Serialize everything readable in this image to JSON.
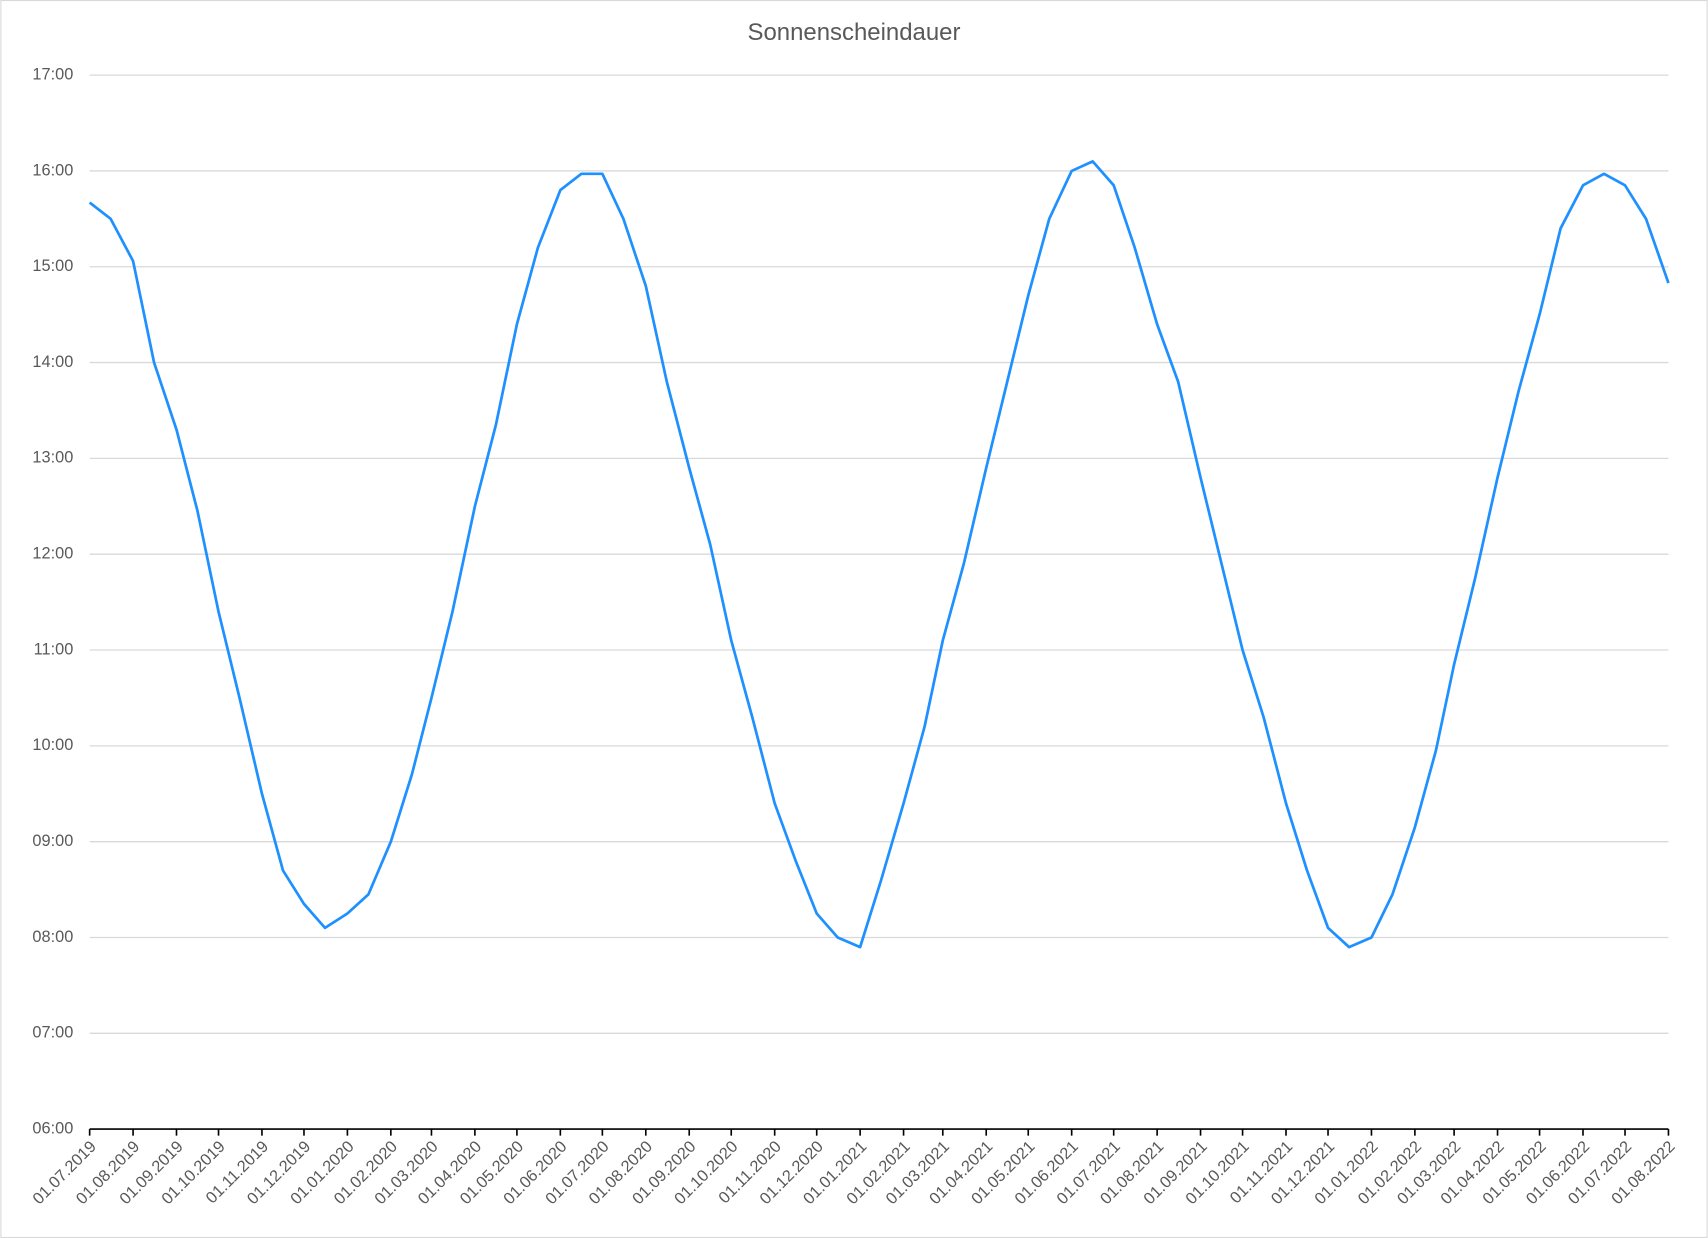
{
  "chart_data": {
    "type": "line",
    "title": "Sonnenscheindauer",
    "x": [
      "01.07.2019",
      "16.07.2019",
      "01.08.2019",
      "16.08.2019",
      "01.09.2019",
      "16.09.2019",
      "01.10.2019",
      "16.10.2019",
      "01.11.2019",
      "16.11.2019",
      "01.12.2019",
      "16.12.2019",
      "01.01.2020",
      "16.01.2020",
      "01.02.2020",
      "16.02.2020",
      "01.03.2020",
      "16.03.2020",
      "01.04.2020",
      "16.04.2020",
      "01.05.2020",
      "16.05.2020",
      "01.06.2020",
      "16.06.2020",
      "01.07.2020",
      "16.07.2020",
      "01.08.2020",
      "16.08.2020",
      "01.09.2020",
      "16.09.2020",
      "01.10.2020",
      "16.10.2020",
      "01.11.2020",
      "16.11.2020",
      "01.12.2020",
      "16.12.2020",
      "01.01.2021",
      "16.01.2021",
      "01.02.2021",
      "16.02.2021",
      "01.03.2021",
      "16.03.2021",
      "01.04.2021",
      "16.04.2021",
      "01.05.2021",
      "16.05.2021",
      "01.06.2021",
      "16.06.2021",
      "01.07.2021",
      "16.07.2021",
      "01.08.2021",
      "16.08.2021",
      "01.09.2021",
      "16.09.2021",
      "01.10.2021",
      "16.10.2021",
      "01.11.2021",
      "16.11.2021",
      "01.12.2021",
      "16.12.2021",
      "01.01.2022",
      "16.01.2022",
      "01.02.2022",
      "16.02.2022",
      "01.03.2022",
      "16.03.2022",
      "01.04.2022",
      "16.04.2022",
      "01.05.2022",
      "16.05.2022",
      "01.06.2022",
      "16.06.2022",
      "01.07.2022",
      "16.07.2022",
      "01.08.2022"
    ],
    "series": [
      {
        "name": "Sonnenscheindauer",
        "color": "#1e90ff",
        "values": [
          15.67,
          15.5,
          15.06,
          14.0,
          13.3,
          12.45,
          11.4,
          10.5,
          9.5,
          8.7,
          8.35,
          8.1,
          8.25,
          8.45,
          9.0,
          9.7,
          10.5,
          11.4,
          12.5,
          13.35,
          14.4,
          15.2,
          15.8,
          15.97,
          15.97,
          15.5,
          14.8,
          13.8,
          12.9,
          12.1,
          11.1,
          10.3,
          9.4,
          8.8,
          8.25,
          8.0,
          7.9,
          8.6,
          9.4,
          10.2,
          11.1,
          11.9,
          12.9,
          13.8,
          14.7,
          15.5,
          16.0,
          16.1,
          15.85,
          15.2,
          14.4,
          13.8,
          12.8,
          11.9,
          11.0,
          10.3,
          9.4,
          8.7,
          8.1,
          7.9,
          8.0,
          8.45,
          9.15,
          9.95,
          10.85,
          11.75,
          12.8,
          13.7,
          14.5,
          15.4,
          15.85,
          15.97,
          15.85,
          15.5,
          14.83
        ]
      }
    ],
    "xlim": [
      "01.07.2019",
      "01.08.2022"
    ],
    "xticks": [
      "01.07.2019",
      "01.08.2019",
      "01.09.2019",
      "01.10.2019",
      "01.11.2019",
      "01.12.2019",
      "01.01.2020",
      "01.02.2020",
      "01.03.2020",
      "01.04.2020",
      "01.05.2020",
      "01.06.2020",
      "01.07.2020",
      "01.08.2020",
      "01.09.2020",
      "01.10.2020",
      "01.11.2020",
      "01.12.2020",
      "01.01.2021",
      "01.02.2021",
      "01.03.2021",
      "01.04.2021",
      "01.05.2021",
      "01.06.2021",
      "01.07.2021",
      "01.08.2021",
      "01.09.2021",
      "01.10.2021",
      "01.11.2021",
      "01.12.2021",
      "01.01.2022",
      "01.02.2022",
      "01.03.2022",
      "01.04.2022",
      "01.05.2022",
      "01.06.2022",
      "01.07.2022",
      "01.08.2022"
    ],
    "ylim": [
      6,
      17
    ],
    "yticks": [
      {
        "value": 6,
        "label": "06:00"
      },
      {
        "value": 7,
        "label": "07:00"
      },
      {
        "value": 8,
        "label": "08:00"
      },
      {
        "value": 9,
        "label": "09:00"
      },
      {
        "value": 10,
        "label": "10:00"
      },
      {
        "value": 11,
        "label": "11:00"
      },
      {
        "value": 12,
        "label": "12:00"
      },
      {
        "value": 13,
        "label": "13:00"
      },
      {
        "value": 14,
        "label": "14:00"
      },
      {
        "value": 15,
        "label": "15:00"
      },
      {
        "value": 16,
        "label": "16:00"
      },
      {
        "value": 17,
        "label": "17:00"
      }
    ],
    "grid": true
  }
}
